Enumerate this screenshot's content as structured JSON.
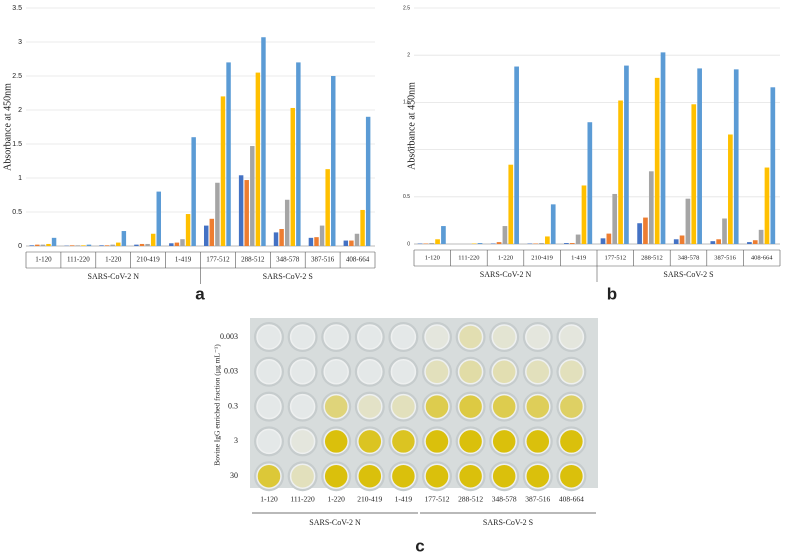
{
  "chart_data": [
    {
      "type": "bar",
      "panel_label": "a",
      "ylabel": "Absorbance at 450nm",
      "categories": [
        "1-120",
        "111-220",
        "1-220",
        "210-419",
        "1-419",
        "177-512",
        "288-512",
        "348-578",
        "387-516",
        "408-664"
      ],
      "group_labels": [
        "SARS-CoV-2 N",
        "SARS-CoV-2 S"
      ],
      "series": [
        {
          "color": "#4472c4",
          "values": [
            0.01,
            0.005,
            0.01,
            0.02,
            0.04,
            0.3,
            1.04,
            0.2,
            0.12,
            0.08
          ]
        },
        {
          "color": "#ed7d31",
          "values": [
            0.02,
            0.01,
            0.01,
            0.03,
            0.05,
            0.4,
            0.97,
            0.25,
            0.13,
            0.08
          ]
        },
        {
          "color": "#a5a5a5",
          "values": [
            0.02,
            0.01,
            0.02,
            0.03,
            0.1,
            0.93,
            1.47,
            0.68,
            0.3,
            0.18
          ]
        },
        {
          "color": "#ffc000",
          "values": [
            0.03,
            0.01,
            0.05,
            0.18,
            0.47,
            2.2,
            2.55,
            2.03,
            1.13,
            0.53
          ]
        },
        {
          "color": "#5b9bd5",
          "values": [
            0.12,
            0.02,
            0.22,
            0.8,
            1.6,
            2.7,
            3.07,
            2.7,
            2.5,
            1.9
          ]
        }
      ],
      "ylim": [
        0,
        3.5
      ],
      "yticks": [
        0,
        0.5,
        1,
        1.5,
        2,
        2.5,
        3,
        3.5
      ],
      "grid": true
    },
    {
      "type": "bar",
      "panel_label": "b",
      "ylabel": "Absorbance at 450nm",
      "categories": [
        "1-120",
        "111-220",
        "1-220",
        "210-419",
        "1-419",
        "177-512",
        "288-512",
        "348-578",
        "387-516",
        "408-664"
      ],
      "group_labels": [
        "SARS-CoV-2 N",
        "SARS-CoV-2 S"
      ],
      "series": [
        {
          "color": "#4472c4",
          "values": [
            0.005,
            0,
            0.005,
            0.005,
            0.01,
            0.06,
            0.22,
            0.05,
            0.03,
            0.02
          ]
        },
        {
          "color": "#ed7d31",
          "values": [
            0.005,
            0,
            0.02,
            0.005,
            0.01,
            0.11,
            0.28,
            0.09,
            0.05,
            0.04
          ]
        },
        {
          "color": "#a5a5a5",
          "values": [
            0.01,
            0,
            0.19,
            0.01,
            0.1,
            0.53,
            0.77,
            0.48,
            0.27,
            0.15
          ]
        },
        {
          "color": "#ffc000",
          "values": [
            0.05,
            0.005,
            0.84,
            0.08,
            0.62,
            1.52,
            1.76,
            1.48,
            1.16,
            0.81
          ]
        },
        {
          "color": "#5b9bd5",
          "values": [
            0.19,
            0.01,
            1.88,
            0.42,
            1.29,
            1.89,
            2.03,
            1.86,
            1.85,
            1.66
          ]
        }
      ],
      "ylim": [
        0,
        2.5
      ],
      "yticks": [
        0,
        0.5,
        1,
        1.5,
        2,
        2.5
      ],
      "grid": true
    }
  ],
  "plate": {
    "panel_label": "c",
    "ylabel": "Bovine IgG enriched fraction (µg mL⁻¹)",
    "rows": [
      "0.003",
      "0.03",
      "0.3",
      "3",
      "30"
    ],
    "columns": [
      "1-120",
      "111-220",
      "1-220",
      "210-419",
      "1-419",
      "177-512",
      "288-512",
      "348-578",
      "387-516",
      "408-664"
    ],
    "group_labels": [
      "SARS-CoV-2 N",
      "SARS-CoV-2 S"
    ]
  }
}
